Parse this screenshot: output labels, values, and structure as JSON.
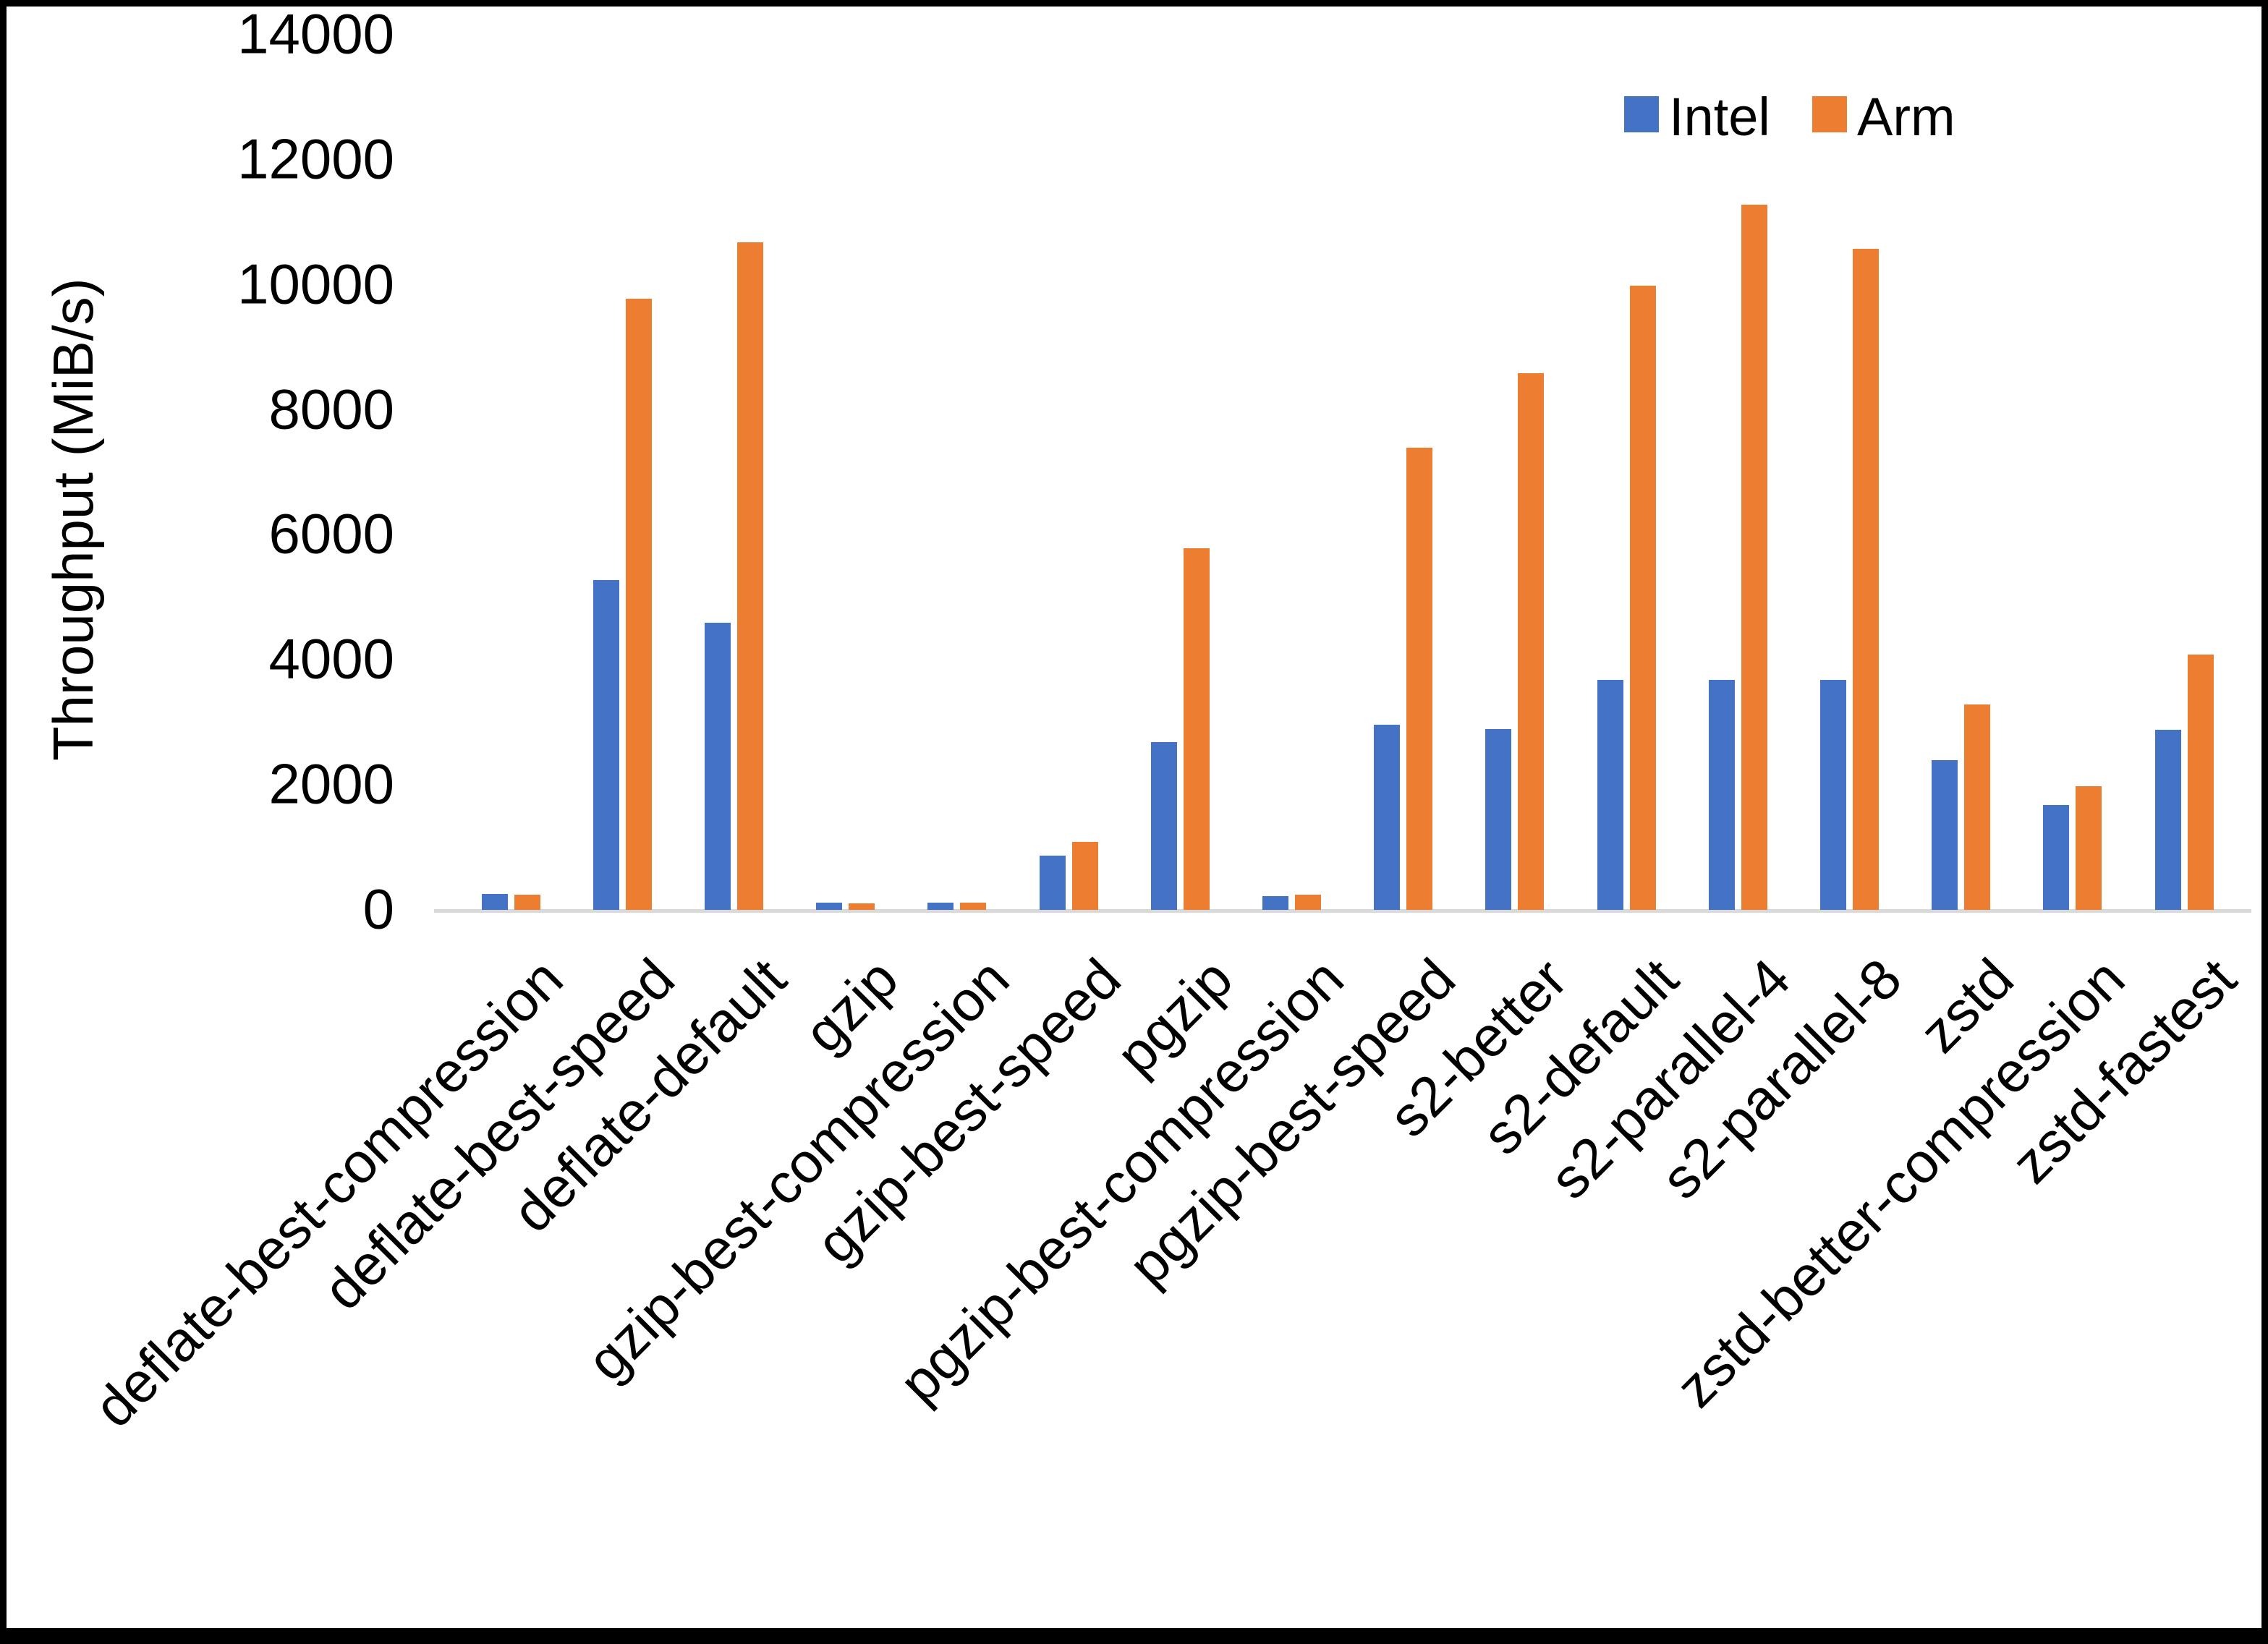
{
  "figure": {
    "background_color": "#ffffff",
    "frame_color": "#000000",
    "axis_line_color": "#d9d9d9",
    "text_color": "#000000"
  },
  "legend": {
    "items": [
      {
        "label": "Intel",
        "color": "#4472C4"
      },
      {
        "label": "Arm",
        "color": "#ED7D31"
      }
    ]
  },
  "chart_data": {
    "type": "bar",
    "title": "",
    "xlabel": "",
    "ylabel": "Throughput (MiB/s)",
    "ylim": [
      0,
      14000
    ],
    "ytick_step": 2000,
    "ytick_labels": [
      "0",
      "2000",
      "4000",
      "6000",
      "8000",
      "10000",
      "12000",
      "14000"
    ],
    "grid": false,
    "legend_position": "top-right",
    "categories": [
      "deflate-best-compression",
      "deflate-best-speed",
      "deflate-default",
      "gzip",
      "gzip-best-compression",
      "gzip-best-speed",
      "pgzip",
      "pgzip-best-compression",
      "pgzip-best-speed",
      "s2-better",
      "s2-default",
      "s2-parallel-4",
      "s2-parallel-8",
      "zstd",
      "zstd-better-compression",
      "zstd-fastest"
    ],
    "series": [
      {
        "name": "Intel",
        "color": "#4472C4",
        "values": [
          250,
          5280,
          4590,
          120,
          120,
          870,
          2680,
          225,
          2960,
          2890,
          3680,
          3680,
          3680,
          2390,
          1680,
          2880
        ]
      },
      {
        "name": "Arm",
        "color": "#ED7D31",
        "values": [
          245,
          9780,
          10680,
          100,
          110,
          1090,
          5780,
          240,
          7390,
          8580,
          9980,
          11280,
          10580,
          3290,
          1980,
          4090
        ]
      }
    ]
  }
}
